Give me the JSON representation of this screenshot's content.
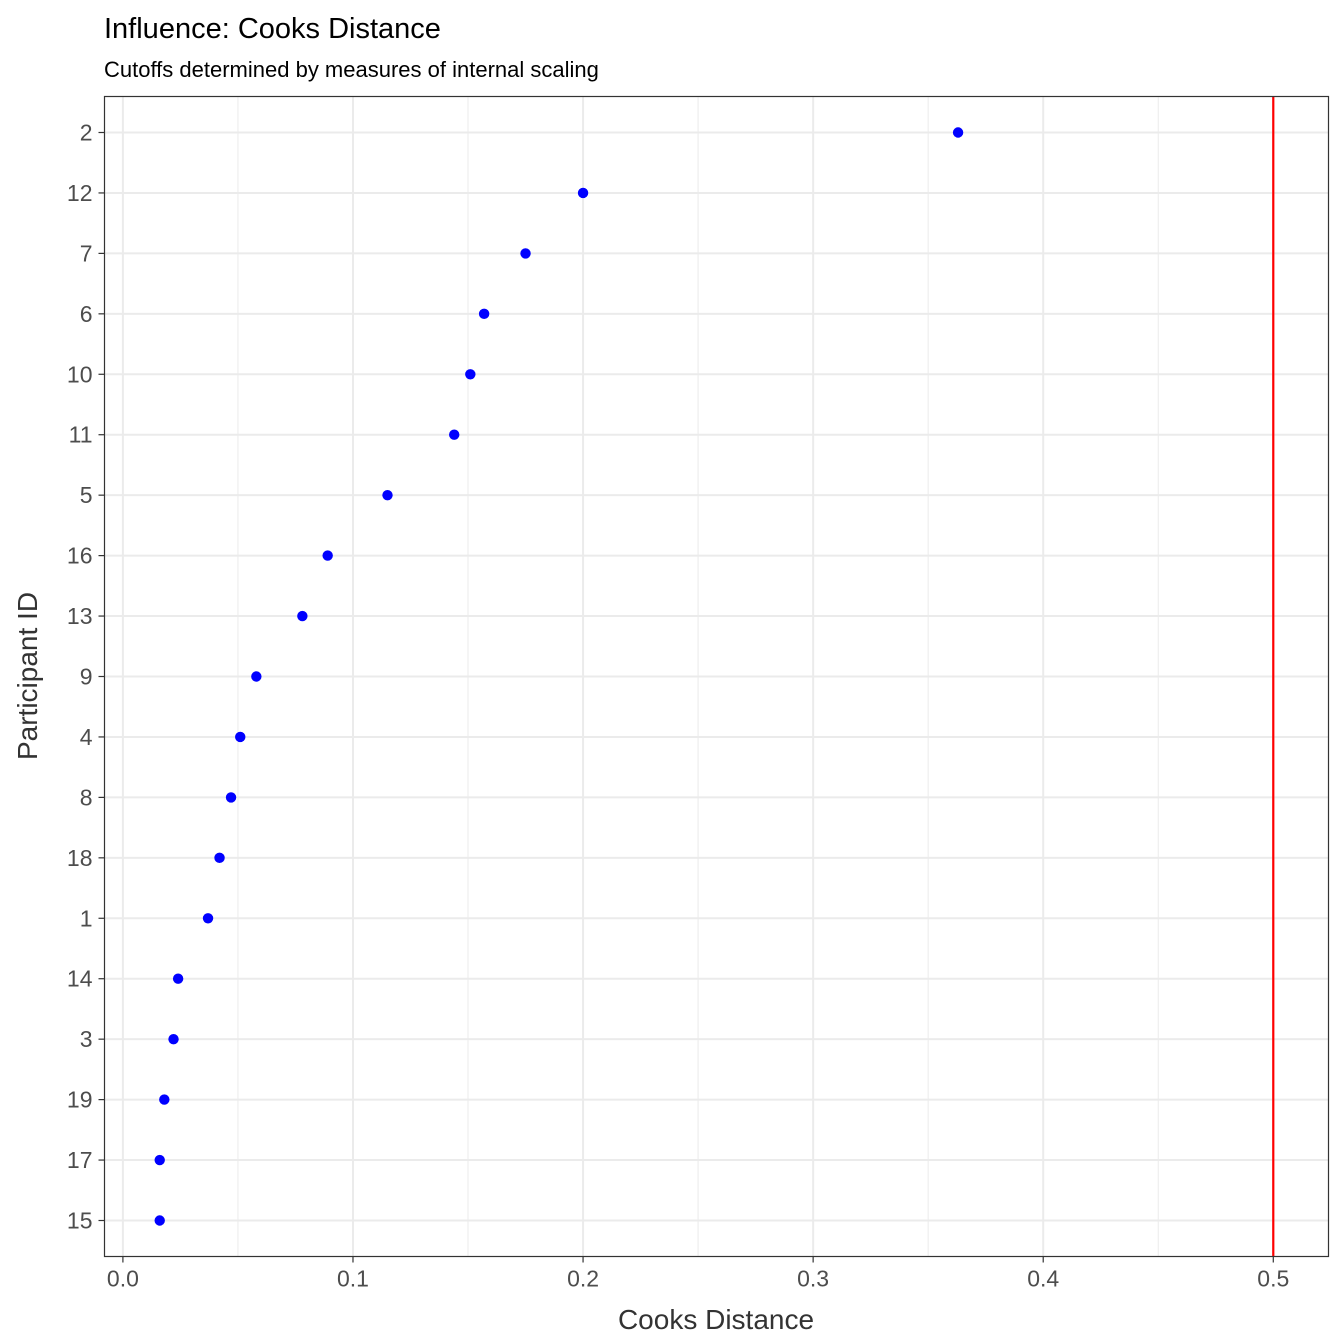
{
  "chart_data": {
    "type": "scatter",
    "title": "Influence: Cooks Distance",
    "subtitle": "Cutoffs determined by measures of internal scaling",
    "xlabel": "Cooks Distance",
    "ylabel": "Participant ID",
    "xlim": [
      -0.008,
      0.524
    ],
    "x_ticks": [
      0.0,
      0.1,
      0.2,
      0.3,
      0.4,
      0.5
    ],
    "x_tick_labels": [
      "0.0",
      "0.1",
      "0.2",
      "0.3",
      "0.4",
      "0.5"
    ],
    "x_minor_ticks": [
      0.05,
      0.15,
      0.25,
      0.35,
      0.45
    ],
    "grid": true,
    "point_color": "#0000ff",
    "cutoff": {
      "x": 0.5,
      "color": "#ff0000"
    },
    "categories": [
      "2",
      "12",
      "7",
      "6",
      "10",
      "11",
      "5",
      "16",
      "13",
      "9",
      "4",
      "8",
      "18",
      "1",
      "14",
      "3",
      "19",
      "17",
      "15"
    ],
    "values": [
      0.363,
      0.2,
      0.175,
      0.157,
      0.151,
      0.144,
      0.115,
      0.089,
      0.078,
      0.058,
      0.051,
      0.047,
      0.042,
      0.037,
      0.024,
      0.022,
      0.018,
      0.016,
      0.016
    ]
  }
}
